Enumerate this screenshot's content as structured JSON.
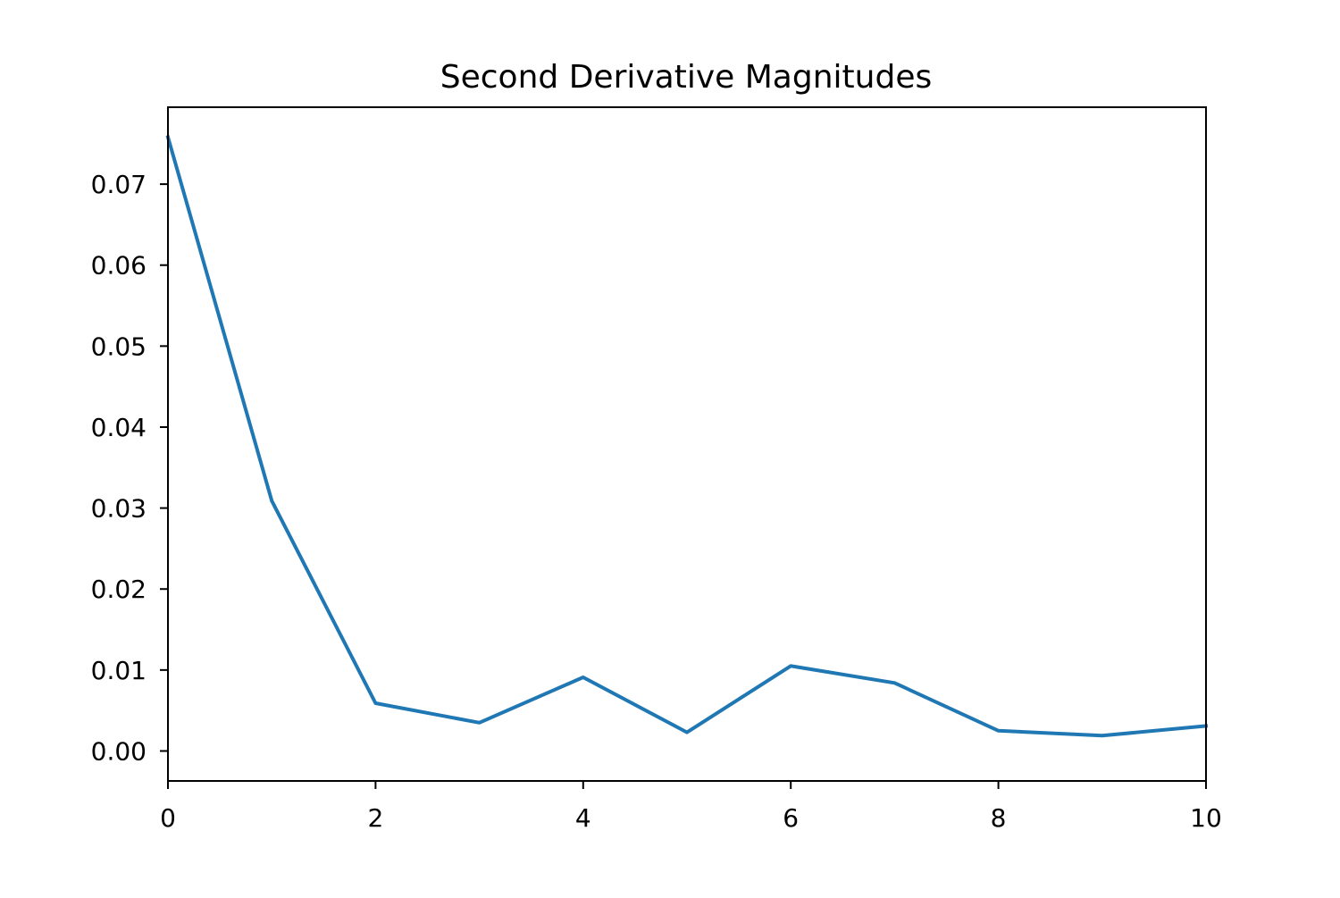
{
  "chart_data": {
    "type": "line",
    "title": "Second Derivative Magnitudes",
    "xlabel": "",
    "ylabel": "",
    "xlim": [
      0,
      10
    ],
    "ylim": [
      -0.0037,
      0.0795
    ],
    "grid": false,
    "legend": "none",
    "x_ticks": [
      0,
      2,
      4,
      6,
      8,
      10
    ],
    "x_tick_labels": [
      "0",
      "2",
      "4",
      "6",
      "8",
      "10"
    ],
    "y_ticks": [
      0.0,
      0.01,
      0.02,
      0.03,
      0.04,
      0.05,
      0.06,
      0.07
    ],
    "y_tick_labels": [
      "0.00",
      "0.01",
      "0.02",
      "0.03",
      "0.04",
      "0.05",
      "0.06",
      "0.07"
    ],
    "series": [
      {
        "color": "#1f77b4",
        "x": [
          0,
          1,
          2,
          3,
          4,
          5,
          6,
          7,
          8,
          9,
          10
        ],
        "y": [
          0.0758,
          0.0309,
          0.0059,
          0.0035,
          0.0091,
          0.0023,
          0.0105,
          0.0084,
          0.0025,
          0.0019,
          0.0031
        ]
      }
    ]
  }
}
